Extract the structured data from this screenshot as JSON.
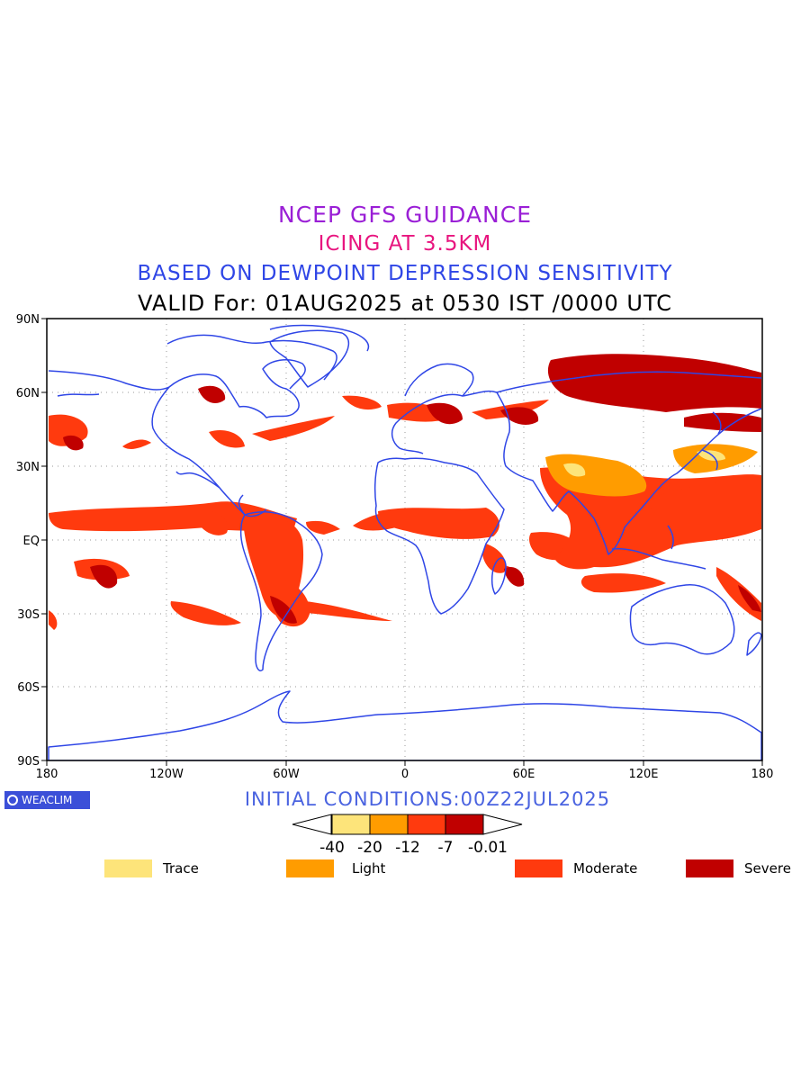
{
  "title": {
    "line1": "NCEP GFS GUIDANCE",
    "line2": "ICING AT 3.5KM",
    "line3": "BASED ON DEWPOINT DEPRESSION SENSITIVITY",
    "line4": "VALID For: 01AUG2025 at 0530 IST /0000 UTC"
  },
  "map": {
    "lat_labels": [
      "90N",
      "60N",
      "30N",
      "EQ",
      "30S",
      "60S",
      "90S"
    ],
    "lon_labels": [
      "180",
      "120W",
      "60W",
      "0",
      "60E",
      "120E",
      "180"
    ],
    "coastline_color": "#2f46e6"
  },
  "badge": {
    "label": "WEACLIM",
    "icon": "circle-logo-icon"
  },
  "initial_conditions": "INITIAL CONDITIONS:00Z22JUL2025",
  "colorbar": {
    "tick_labels": [
      "-40",
      "-20",
      "-12",
      "-7",
      "-0.01"
    ],
    "colors": [
      "#fde47a",
      "#ff9c00",
      "#ff3a0e",
      "#c00000"
    ]
  },
  "legend": [
    {
      "label": "Trace",
      "color": "#fde47a"
    },
    {
      "label": "Light",
      "color": "#ff9c00"
    },
    {
      "label": "Moderate",
      "color": "#ff3a0e"
    },
    {
      "label": "Severe",
      "color": "#c00000"
    }
  ]
}
